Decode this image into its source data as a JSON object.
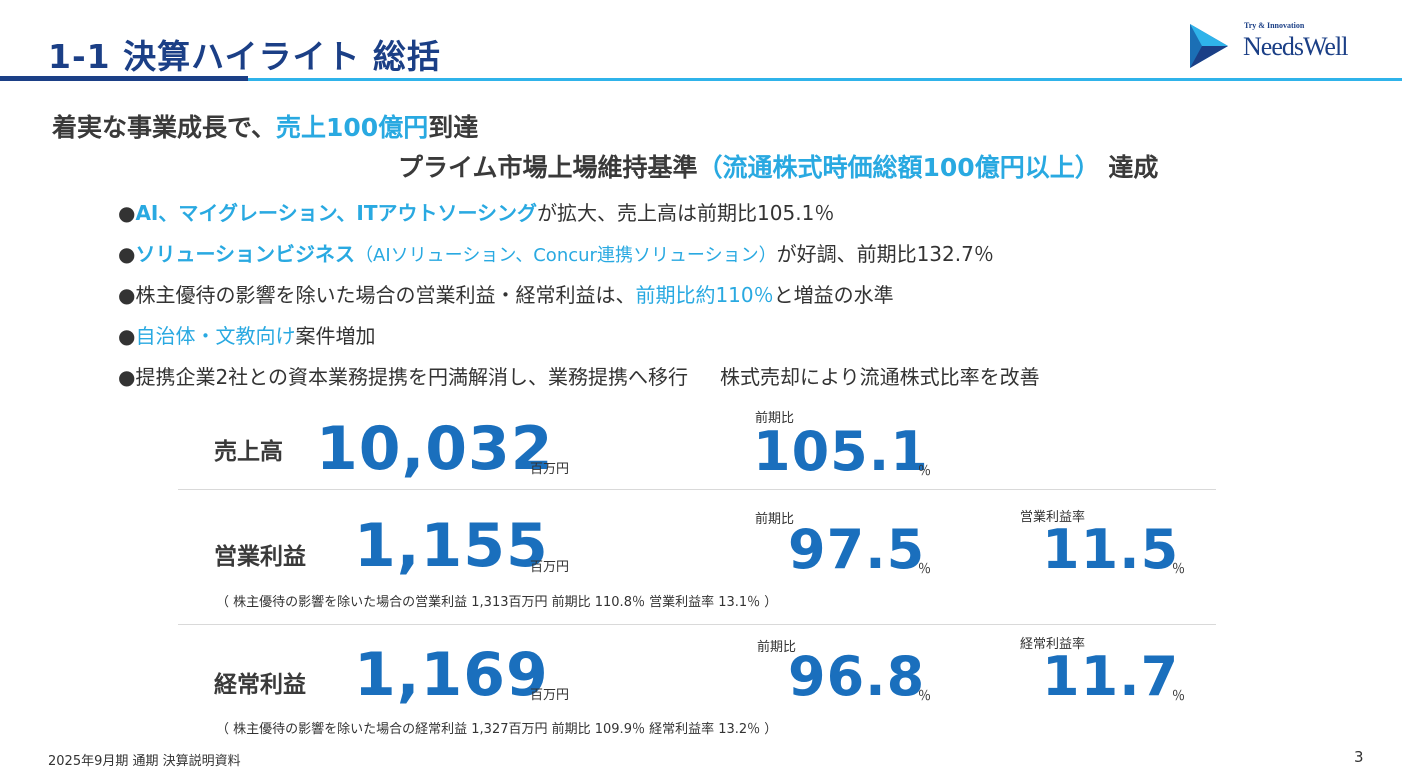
{
  "header": {
    "title": "1-1  決算ハイライト  総括",
    "logo_tagline": "Try & Innovation",
    "logo_name": "NeedsWell"
  },
  "headline": {
    "line1_prefix": "着実な事業成長で、",
    "line1_accent": "売上100億円",
    "line1_suffix": "到達",
    "line2_prefix": "プライム市場上場維持基準",
    "line2_accent": "（流通株式時価総額100億円以上）",
    "line2_suffix": " 達成"
  },
  "bullets": [
    {
      "mark": "●",
      "accent": "AI、マイグレーション、ITアウトソーシング",
      "text": "が拡大、売上高は前期比105.1％"
    },
    {
      "mark": "●",
      "accent": "ソリューションビジネス",
      "note": "（AIソリューション、Concur連携ソリューション）",
      "text": "が好調、前期比132.7％"
    },
    {
      "mark": "●",
      "pre": "株主優待の影響を除いた場合の営業利益・経常利益は、",
      "accent": "前期比約110％",
      "text": "と増益の水準"
    },
    {
      "mark": "●",
      "accent": "自治体・文教向け",
      "text": "案件増加"
    },
    {
      "mark": "●",
      "pre": "提携企業2社との資本業務提携を円満解消し、業務提携へ移行",
      "text": "株式売却により流通株式比率を改善"
    }
  ],
  "kpis": {
    "sales": {
      "label": "売上高",
      "value": "10,032",
      "unit": "百万円",
      "yoy_label": "前期比",
      "yoy_value": "105.1",
      "yoy_unit": "％"
    },
    "operating": {
      "label": "営業利益",
      "value": "1,155",
      "unit": "百万円",
      "yoy_label": "前期比",
      "yoy_value": "97.5",
      "yoy_unit": "％",
      "margin_label": "営業利益率",
      "margin_value": "11.5",
      "margin_unit": "％",
      "note": "（ 株主優待の影響を除いた場合の営業利益  1,313百万円      前期比  110.8％      営業利益率  13.1％ ）"
    },
    "ordinary": {
      "label": "経常利益",
      "value": "1,169",
      "unit": "百万円",
      "yoy_label": "前期比",
      "yoy_value": "96.8",
      "yoy_unit": "％",
      "margin_label": "経常利益率",
      "margin_value": "11.7",
      "margin_unit": "％",
      "note": "（ 株主優待の影響を除いた場合の経常利益  1,327百万円      前期比  109.9％      経常利益率  13.2％ ）"
    }
  },
  "footer": {
    "text": "2025年9月期 通期 決算説明資料",
    "page": "3"
  },
  "colors": {
    "navy": "#1b3f86",
    "cyan": "#29a9e1",
    "kpi_blue": "#1a6fbd"
  }
}
